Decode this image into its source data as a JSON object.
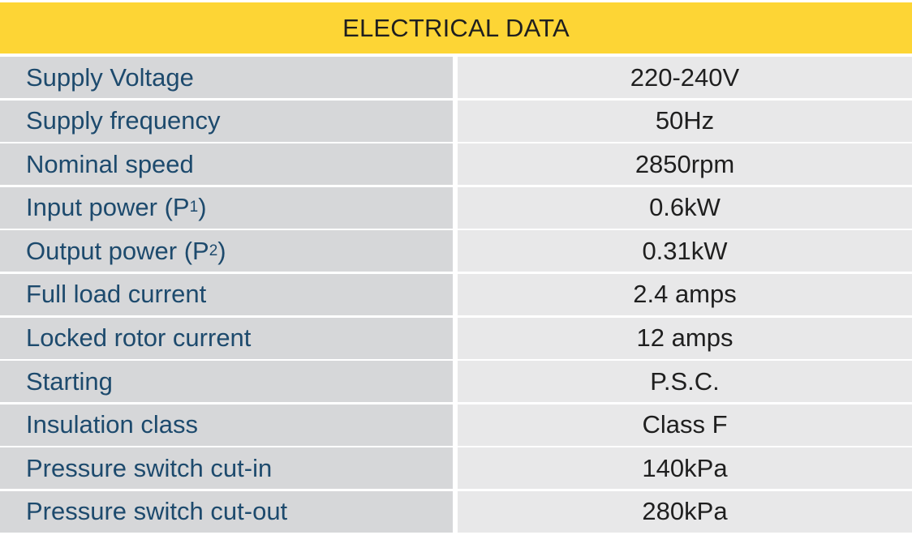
{
  "title": "ELECTRICAL DATA",
  "rows": [
    {
      "label": "Supply Voltage",
      "value": "220-240V"
    },
    {
      "label": "Supply frequency",
      "value": "50Hz"
    },
    {
      "label": "Nominal speed",
      "value": "2850rpm"
    },
    {
      "label_prefix": "Input power (P",
      "label_sub": "1",
      "label_suffix": ")",
      "value": "0.6kW"
    },
    {
      "label_prefix": "Output power (P",
      "label_sub": "2",
      "label_suffix": ")",
      "value": "0.31kW"
    },
    {
      "label": "Full load current",
      "value": "2.4 amps"
    },
    {
      "label": "Locked rotor current",
      "value": "12 amps"
    },
    {
      "label": "Starting",
      "value": "P.S.C."
    },
    {
      "label": "Insulation class",
      "value": "Class F"
    },
    {
      "label": "Pressure switch cut-in",
      "value": "140kPa"
    },
    {
      "label": "Pressure switch cut-out",
      "value": "280kPa"
    }
  ]
}
